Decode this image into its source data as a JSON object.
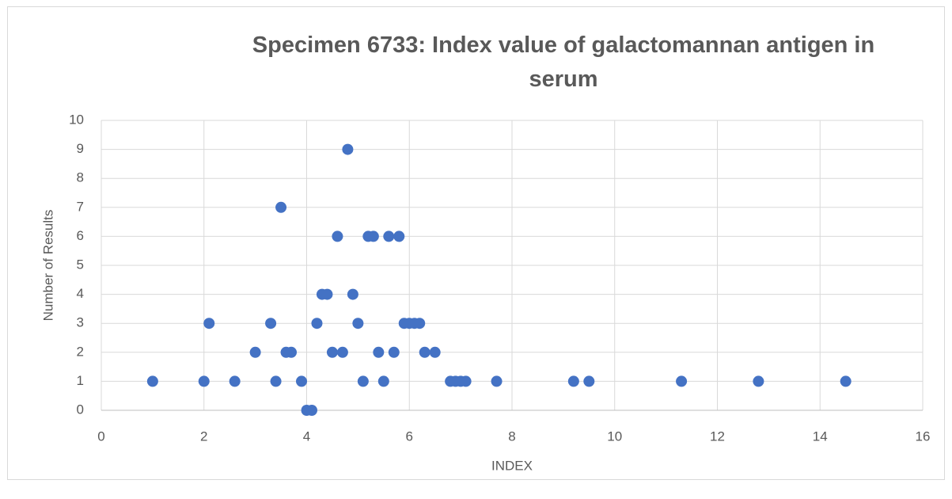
{
  "chart_data": {
    "type": "scatter",
    "title": "Specimen 6733: Index value of galactomannan antigen in serum",
    "x_label": "INDEX",
    "y_label": "Number of Results",
    "color": "#4472c4",
    "grid": true,
    "xlim": [
      0,
      16
    ],
    "xticks": [
      0,
      2,
      4,
      6,
      8,
      10,
      12,
      14,
      16
    ],
    "ylim": [
      0,
      10
    ],
    "yticks": [
      0,
      1,
      2,
      3,
      4,
      5,
      6,
      7,
      8,
      9,
      10
    ],
    "x": [
      1.0,
      2.0,
      2.1,
      2.6,
      3.0,
      3.3,
      3.4,
      3.5,
      3.6,
      3.7,
      3.9,
      4.0,
      4.1,
      4.2,
      4.3,
      4.4,
      4.5,
      4.6,
      4.7,
      4.8,
      4.9,
      5.0,
      5.1,
      5.2,
      5.3,
      5.4,
      5.5,
      5.6,
      5.7,
      5.8,
      5.9,
      6.0,
      6.1,
      6.2,
      6.3,
      6.5,
      6.8,
      6.9,
      7.0,
      7.1,
      7.7,
      9.2,
      9.5,
      11.3,
      12.8,
      14.5
    ],
    "values": [
      1,
      1,
      3,
      1,
      2,
      3,
      1,
      7,
      2,
      2,
      1,
      0,
      0,
      3,
      4,
      4,
      2,
      6,
      2,
      9,
      4,
      3,
      1,
      6,
      6,
      2,
      1,
      6,
      2,
      6,
      3,
      3,
      3,
      3,
      2,
      2,
      1,
      1,
      1,
      1,
      1,
      1,
      1,
      1,
      1,
      1
    ]
  }
}
